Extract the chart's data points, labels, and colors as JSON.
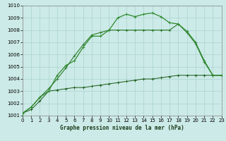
{
  "title": "Graphe pression niveau de la mer (hPa)",
  "bg_color": "#cceae7",
  "grid_color": "#aad4d0",
  "xlim": [
    0,
    23
  ],
  "ylim": [
    1001,
    1010
  ],
  "xticks": [
    0,
    1,
    2,
    3,
    4,
    5,
    6,
    7,
    8,
    9,
    10,
    11,
    12,
    13,
    14,
    15,
    16,
    17,
    18,
    19,
    20,
    21,
    22,
    23
  ],
  "yticks": [
    1001,
    1002,
    1003,
    1004,
    1005,
    1006,
    1007,
    1008,
    1009,
    1010
  ],
  "series1_y": [
    1001.2,
    1001.7,
    1002.5,
    1003.0,
    1004.3,
    1005.1,
    1005.5,
    1006.6,
    1007.5,
    1007.5,
    1008.0,
    1009.0,
    1009.3,
    1009.1,
    1009.3,
    1009.4,
    1009.1,
    1008.6,
    1008.5,
    1007.9,
    1007.0,
    1005.5,
    1004.3,
    1004.3
  ],
  "series2_y": [
    1001.2,
    1001.5,
    1002.2,
    1003.0,
    1003.1,
    1003.2,
    1003.3,
    1003.3,
    1003.4,
    1003.5,
    1003.6,
    1003.7,
    1003.8,
    1003.9,
    1004.0,
    1004.0,
    1004.1,
    1004.2,
    1004.3,
    1004.3,
    1004.3,
    1004.3,
    1004.3,
    1004.3
  ],
  "series3_y": [
    1001.2,
    1001.7,
    1002.5,
    1003.2,
    1004.0,
    1004.9,
    1005.9,
    1006.8,
    1007.6,
    1007.8,
    1008.0,
    1008.0,
    1008.0,
    1008.0,
    1008.0,
    1008.0,
    1008.0,
    1008.0,
    1008.5,
    1007.8,
    1006.9,
    1005.4,
    1004.3,
    1004.3
  ],
  "color1": "#2d8a2d",
  "color2": "#1a5c1a",
  "color3": "#2d7a2d",
  "tick_fontsize": 5.0,
  "label_fontsize": 5.5
}
